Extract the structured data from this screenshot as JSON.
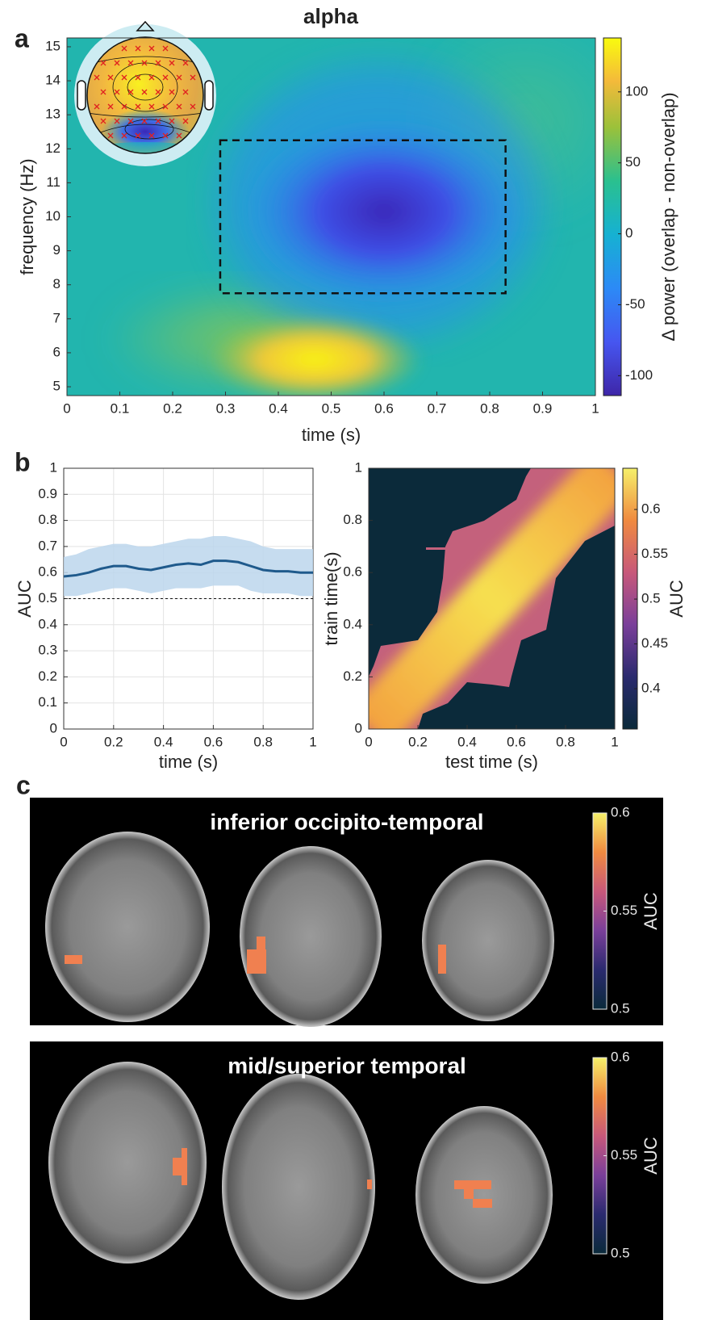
{
  "figure": {
    "title": "alpha",
    "panel_labels": [
      "a",
      "b",
      "c"
    ],
    "a": {
      "type": "heatmap",
      "x_label": "time (s)",
      "y_label": "frequency (Hz)",
      "xlim": [
        0,
        1
      ],
      "xticks": [
        0,
        0.1,
        0.2,
        0.3,
        0.4,
        0.5,
        0.6,
        0.7,
        0.8,
        0.9,
        1
      ],
      "ylim": [
        4.74,
        15.26
      ],
      "yticks": [
        5,
        6,
        7,
        8,
        9,
        10,
        11,
        12,
        13,
        14,
        15
      ],
      "roi": {
        "xlim": [
          0.29,
          0.83
        ],
        "ylim": [
          7.75,
          12.25
        ]
      },
      "colorbar": {
        "label": "Δ power (overlap - non-overlap)",
        "lim": [
          -114,
          138
        ],
        "ticks": [
          -100,
          -50,
          0,
          50,
          100
        ]
      }
    },
    "b_left": {
      "type": "line",
      "x_label": "time (s)",
      "y_label": "AUC",
      "xlim": [
        0,
        1
      ],
      "xticks": [
        0,
        0.2,
        0.4,
        0.6,
        0.8,
        1
      ],
      "ylim": [
        0,
        1
      ],
      "yticks": [
        0,
        0.1,
        0.2,
        0.3,
        0.4,
        0.5,
        0.6,
        0.7,
        0.8,
        0.9,
        1
      ],
      "grid": true,
      "chance": 0.5,
      "color": "#1f5a8c",
      "band_color": "#bcd6ec",
      "x": [
        0,
        0.05,
        0.1,
        0.15,
        0.2,
        0.25,
        0.3,
        0.35,
        0.4,
        0.45,
        0.5,
        0.55,
        0.6,
        0.65,
        0.7,
        0.75,
        0.8,
        0.85,
        0.9,
        0.95,
        1
      ],
      "values": [
        0.585,
        0.59,
        0.6,
        0.615,
        0.625,
        0.625,
        0.615,
        0.61,
        0.62,
        0.63,
        0.635,
        0.63,
        0.645,
        0.645,
        0.64,
        0.625,
        0.61,
        0.605,
        0.605,
        0.6,
        0.6
      ],
      "upper": [
        0.66,
        0.67,
        0.69,
        0.7,
        0.71,
        0.71,
        0.7,
        0.7,
        0.71,
        0.72,
        0.73,
        0.73,
        0.74,
        0.74,
        0.73,
        0.72,
        0.7,
        0.69,
        0.69,
        0.69,
        0.69
      ],
      "lower": [
        0.51,
        0.51,
        0.52,
        0.53,
        0.54,
        0.54,
        0.53,
        0.52,
        0.53,
        0.54,
        0.54,
        0.54,
        0.55,
        0.55,
        0.55,
        0.53,
        0.52,
        0.52,
        0.52,
        0.51,
        0.51
      ]
    },
    "b_right": {
      "type": "heatmap",
      "x_label": "test time (s)",
      "y_label": "train time(s)",
      "xlim": [
        0,
        1
      ],
      "xticks": [
        0,
        0.2,
        0.4,
        0.6,
        0.8,
        1
      ],
      "ylim": [
        0,
        1
      ],
      "yticks": [
        0,
        0.2,
        0.4,
        0.6,
        0.8,
        1
      ],
      "colorbar": {
        "label": "AUC",
        "lim": [
          0.355,
          0.646
        ],
        "ticks": [
          0.4,
          0.45,
          0.5,
          0.55,
          0.6
        ]
      }
    },
    "c_panels": [
      {
        "title": "inferior occipito-temporal",
        "colorbar": {
          "label": "AUC",
          "lim": [
            0.5,
            0.6
          ],
          "ticks": [
            0.5,
            0.55,
            0.6
          ]
        }
      },
      {
        "title": "mid/superior temporal",
        "colorbar": {
          "label": "AUC",
          "lim": [
            0.5,
            0.6
          ],
          "ticks": [
            0.5,
            0.55,
            0.6
          ]
        }
      }
    ]
  }
}
